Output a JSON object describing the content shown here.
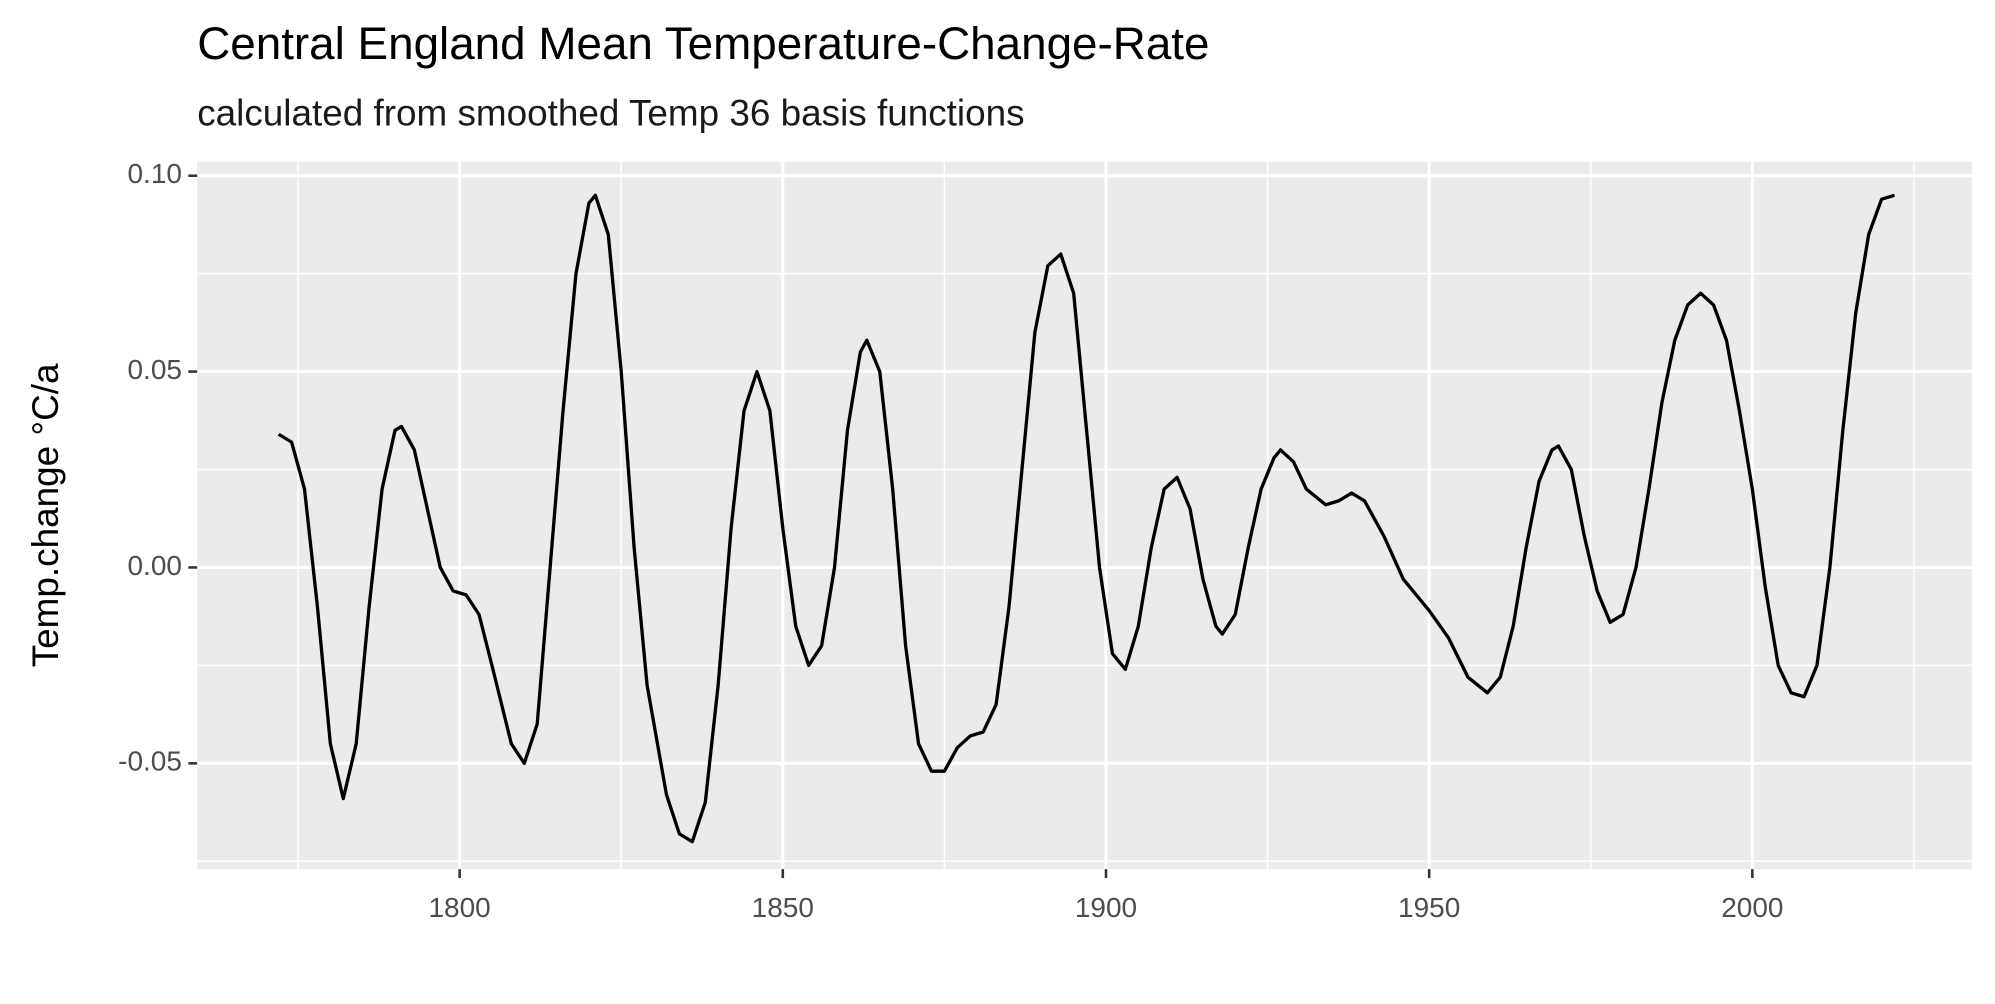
{
  "chart_data": {
    "type": "line",
    "title": "Central England Mean Temperature-Change-Rate",
    "subtitle": "calculated from smoothed Temp 36 basis functions",
    "ylabel": "Temp.change °C/a",
    "x": [
      1772,
      1774,
      1776,
      1778,
      1780,
      1782,
      1784,
      1786,
      1788,
      1790,
      1791,
      1793,
      1795,
      1797,
      1799,
      1801,
      1803,
      1805,
      1808,
      1810,
      1812,
      1814,
      1816,
      1818,
      1820,
      1821,
      1823,
      1825,
      1827,
      1829,
      1832,
      1834,
      1836,
      1838,
      1840,
      1842,
      1844,
      1846,
      1848,
      1850,
      1852,
      1854,
      1856,
      1858,
      1860,
      1862,
      1863,
      1865,
      1867,
      1869,
      1871,
      1873,
      1875,
      1877,
      1879,
      1881,
      1883,
      1885,
      1887,
      1889,
      1891,
      1893,
      1895,
      1897,
      1899,
      1901,
      1903,
      1905,
      1907,
      1909,
      1911,
      1913,
      1915,
      1917,
      1918,
      1920,
      1922,
      1924,
      1926,
      1927,
      1929,
      1931,
      1934,
      1936,
      1938,
      1940,
      1943,
      1946,
      1950,
      1953,
      1956,
      1959,
      1961,
      1963,
      1965,
      1967,
      1969,
      1970,
      1972,
      1974,
      1976,
      1978,
      1980,
      1982,
      1984,
      1986,
      1988,
      1990,
      1992,
      1994,
      1996,
      1998,
      2000,
      2002,
      2004,
      2006,
      2008,
      2010,
      2012,
      2014,
      2016,
      2018,
      2020,
      2022
    ],
    "series": [
      {
        "color": "#000000",
        "values": [
          0.034,
          0.032,
          0.02,
          -0.01,
          -0.045,
          -0.059,
          -0.045,
          -0.01,
          0.02,
          0.035,
          0.036,
          0.03,
          0.015,
          0.0,
          -0.006,
          -0.007,
          -0.012,
          -0.025,
          -0.045,
          -0.05,
          -0.04,
          0.0,
          0.04,
          0.075,
          0.093,
          0.095,
          0.085,
          0.05,
          0.005,
          -0.03,
          -0.058,
          -0.068,
          -0.07,
          -0.06,
          -0.03,
          0.01,
          0.04,
          0.05,
          0.04,
          0.01,
          -0.015,
          -0.025,
          -0.02,
          0.0,
          0.035,
          0.055,
          0.058,
          0.05,
          0.02,
          -0.02,
          -0.045,
          -0.052,
          -0.052,
          -0.046,
          -0.043,
          -0.042,
          -0.035,
          -0.01,
          0.025,
          0.06,
          0.077,
          0.08,
          0.07,
          0.035,
          0.0,
          -0.022,
          -0.026,
          -0.015,
          0.005,
          0.02,
          0.023,
          0.015,
          -0.003,
          -0.015,
          -0.017,
          -0.012,
          0.005,
          0.02,
          0.028,
          0.03,
          0.027,
          0.02,
          0.016,
          0.017,
          0.019,
          0.017,
          0.008,
          -0.003,
          -0.011,
          -0.018,
          -0.028,
          -0.032,
          -0.028,
          -0.015,
          0.005,
          0.022,
          0.03,
          0.031,
          0.025,
          0.008,
          -0.006,
          -0.014,
          -0.012,
          0.0,
          0.02,
          0.042,
          0.058,
          0.067,
          0.07,
          0.067,
          0.058,
          0.04,
          0.02,
          -0.005,
          -0.025,
          -0.032,
          -0.033,
          -0.025,
          0.0,
          0.035,
          0.065,
          0.085,
          0.094,
          0.095
        ]
      }
    ],
    "xlim": [
      1759.4,
      2034
    ],
    "xticks": [
      1800,
      1850,
      1900,
      1950,
      2000
    ],
    "xminor": [
      1775,
      1825,
      1875,
      1925,
      1975,
      2025
    ],
    "ylim": [
      -0.077,
      0.1036
    ],
    "yticks": [
      {
        "value": 0.1,
        "label": "0.10"
      },
      {
        "value": 0.05,
        "label": "0.05"
      },
      {
        "value": 0,
        "label": "0.00"
      },
      {
        "value": -0.05,
        "label": "-0.05"
      }
    ],
    "yminor": [
      0.075,
      0.025,
      -0.025,
      -0.075
    ],
    "grid": true
  }
}
